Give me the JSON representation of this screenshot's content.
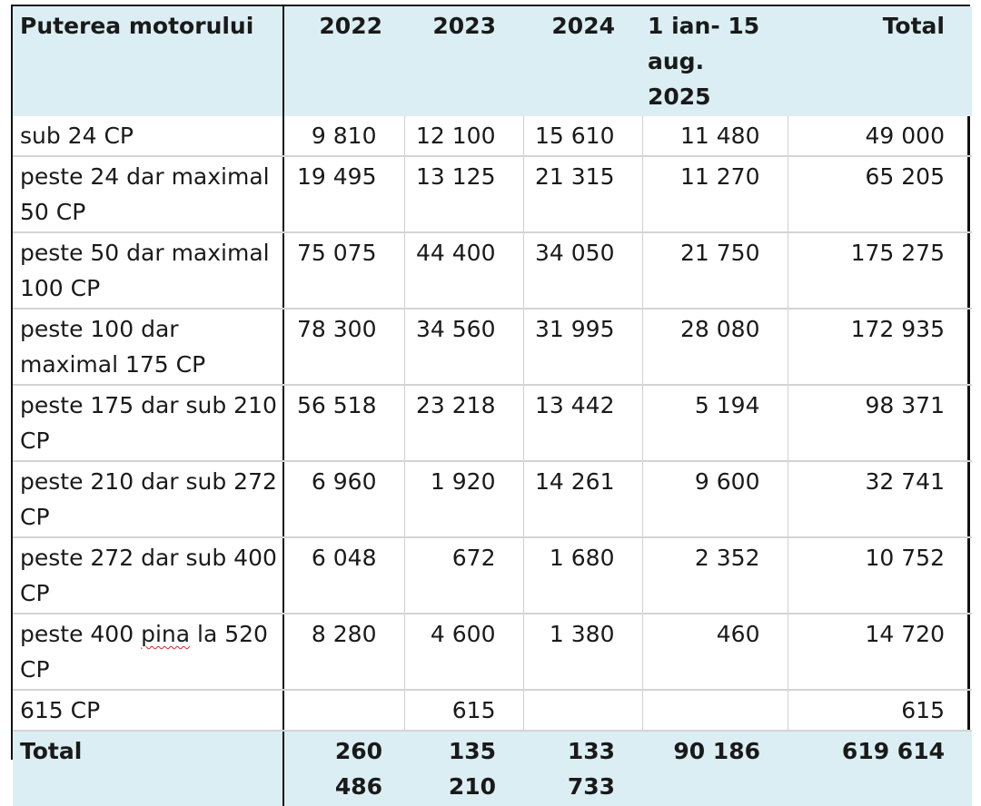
{
  "table": {
    "headers": [
      "Puterea motorului",
      "2022",
      "2023",
      "2024",
      "1 ian- 15 aug. 2025",
      "Total"
    ],
    "rows": [
      {
        "label": "sub 24 CP",
        "values": [
          "9 810",
          "12 100",
          "15 610",
          "11 480",
          "49 000"
        ]
      },
      {
        "label": "peste 24 dar maximal 50 CP",
        "values": [
          "19 495",
          "13 125",
          "21 315",
          "11 270",
          "65 205"
        ]
      },
      {
        "label": "peste 50 dar maximal 100 CP",
        "values": [
          "75 075",
          "44 400",
          "34 050",
          "21 750",
          "175 275"
        ]
      },
      {
        "label": "peste 100 dar maximal 175 CP",
        "values": [
          "78 300",
          "34 560",
          "31 995",
          "28 080",
          "172 935"
        ]
      },
      {
        "label": "peste 175 dar sub 210 CP",
        "values": [
          "56 518",
          "23 218",
          "13 442",
          "5 194",
          "98 371"
        ]
      },
      {
        "label": "peste 210 dar sub 272 CP",
        "values": [
          "6 960",
          "1 920",
          "14 261",
          "9 600",
          "32 741"
        ]
      },
      {
        "label": "peste 272 dar sub 400 CP",
        "values": [
          "6 048",
          "672",
          "1 680",
          "2 352",
          "10 752"
        ]
      },
      {
        "label_before": "peste 400 ",
        "label_flagged": "pina",
        "label_after": " la 520 CP",
        "values": [
          "8 280",
          "4 600",
          "1 380",
          "460",
          "14 720"
        ]
      },
      {
        "label": "615 CP",
        "values": [
          "",
          "615",
          "",
          "",
          "615"
        ]
      }
    ],
    "total": {
      "label": "Total",
      "values": [
        "260 486",
        "135 210",
        "133 733",
        "90 186",
        "619 614"
      ]
    }
  },
  "colors": {
    "header_bg": "#dbeef3",
    "border": "#111111",
    "grid": "#d4d4d4",
    "spellcheck": "#dd2222"
  }
}
